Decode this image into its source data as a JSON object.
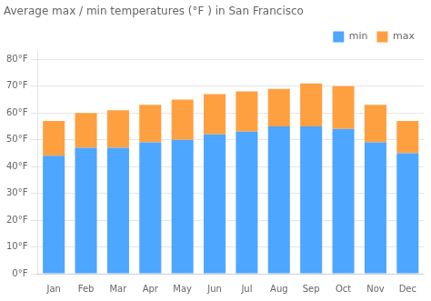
{
  "chart_data": {
    "type": "bar",
    "title": "Average max / min temperatures (°F ) in San Francisco",
    "categories": [
      "Jan",
      "Feb",
      "Mar",
      "Apr",
      "May",
      "Jun",
      "Jul",
      "Aug",
      "Sep",
      "Oct",
      "Nov",
      "Dec"
    ],
    "series": [
      {
        "name": "min",
        "color": "#4da6ff",
        "values": [
          44,
          47,
          47,
          49,
          50,
          52,
          53,
          55,
          55,
          54,
          49,
          45
        ]
      },
      {
        "name": "max",
        "color": "#ffa040",
        "values": [
          13,
          13,
          14,
          14,
          15,
          15,
          15,
          14,
          16,
          16,
          14,
          12
        ]
      }
    ],
    "stacked": true,
    "ylim": [
      0,
      83
    ],
    "yticks": [
      {
        "value": 0,
        "label": "0°F"
      },
      {
        "value": 10,
        "label": "10°F"
      },
      {
        "value": 20,
        "label": "20°F"
      },
      {
        "value": 30,
        "label": "30°F"
      },
      {
        "value": 40,
        "label": "40°F"
      },
      {
        "value": 50,
        "label": "50°F"
      },
      {
        "value": 60,
        "label": "60°F"
      },
      {
        "value": 70,
        "label": "70°F"
      },
      {
        "value": 80,
        "label": "80°F"
      }
    ],
    "grid": true,
    "legend": "upper right"
  }
}
